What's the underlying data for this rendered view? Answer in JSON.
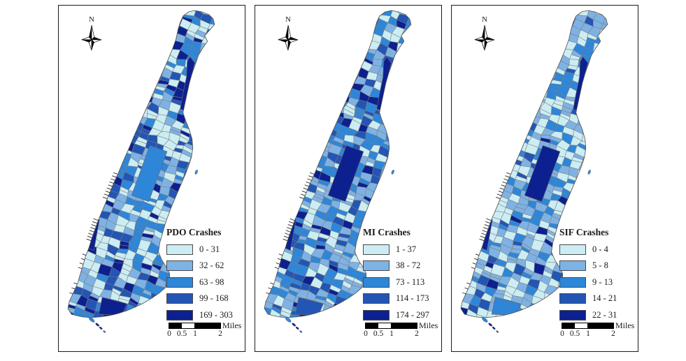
{
  "figure": {
    "background": "#ffffff",
    "panel_border_color": "#1b1b1b",
    "tract_border_color": "#7d7d7d",
    "north_label": "N",
    "scalebar": {
      "ticks": [
        "0",
        "0.5",
        "1",
        "2"
      ],
      "unit": "Miles"
    },
    "panels": [
      {
        "id": "pdo",
        "legend_title": "PDO Crashes",
        "classes": [
          {
            "label": "0 - 31",
            "color": "#cbedf3"
          },
          {
            "label": "32 - 62",
            "color": "#7fb2e4"
          },
          {
            "label": "63 - 98",
            "color": "#2e86d9"
          },
          {
            "label": "99 - 168",
            "color": "#2355b4"
          },
          {
            "label": "169 - 303",
            "color": "#0d2090"
          }
        ]
      },
      {
        "id": "mi",
        "legend_title": "MI Crashes",
        "classes": [
          {
            "label": "1 - 37",
            "color": "#cbedf3"
          },
          {
            "label": "38 - 72",
            "color": "#7fb2e4"
          },
          {
            "label": "73 - 113",
            "color": "#2e86d9"
          },
          {
            "label": "114 - 173",
            "color": "#2355b4"
          },
          {
            "label": "174 - 297",
            "color": "#0d2090"
          }
        ]
      },
      {
        "id": "sif",
        "legend_title": "SIF Crashes",
        "classes": [
          {
            "label": "0 - 4",
            "color": "#cbedf3"
          },
          {
            "label": "5 - 8",
            "color": "#7fb2e4"
          },
          {
            "label": "9 - 13",
            "color": "#2e86d9"
          },
          {
            "label": "14 - 21",
            "color": "#2355b4"
          },
          {
            "label": "22 - 31",
            "color": "#0d2090"
          }
        ]
      }
    ]
  }
}
